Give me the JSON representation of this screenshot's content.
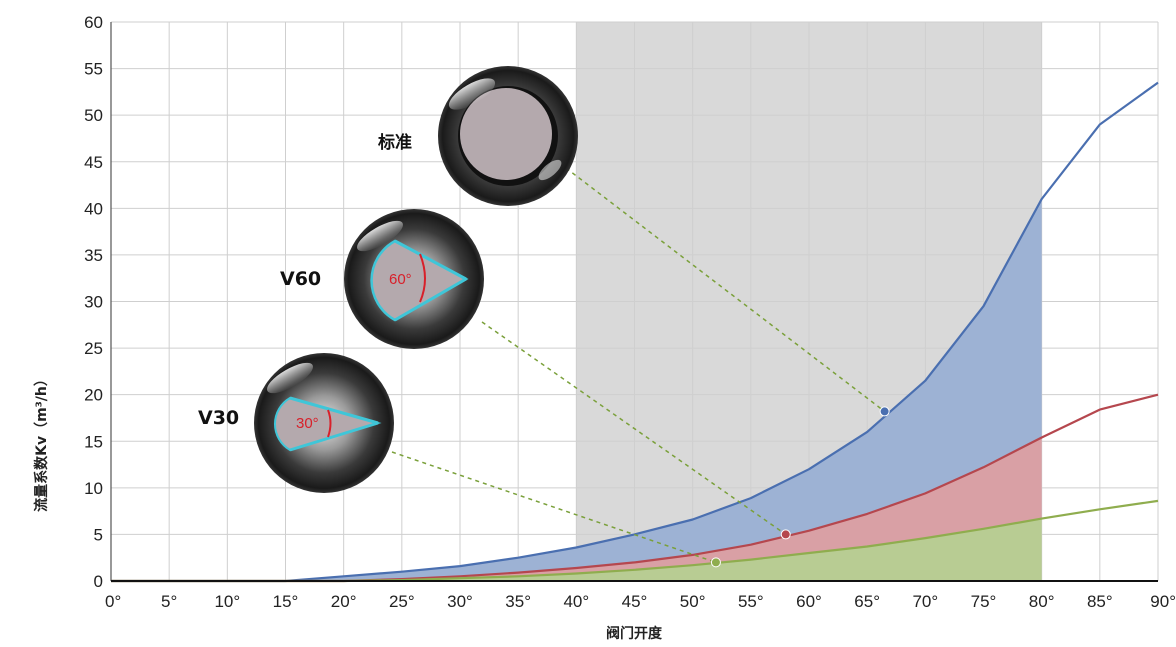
{
  "chart_data": {
    "type": "area",
    "xlabel": "阀门开度",
    "ylabel": "流量系数Kv（m³/h）",
    "x_ticks": [
      "0°",
      "5°",
      "10°",
      "15°",
      "20°",
      "25°",
      "30°",
      "35°",
      "40°",
      "45°",
      "50°",
      "55°",
      "60°",
      "65°",
      "70°",
      "75°",
      "80°",
      "85°",
      "90°"
    ],
    "xlim": [
      0,
      90
    ],
    "ylim": [
      0,
      60
    ],
    "y_ticks": [
      0,
      5,
      10,
      15,
      20,
      25,
      30,
      35,
      40,
      45,
      50,
      55,
      60
    ],
    "grid": true,
    "highlight_range": [
      40,
      80
    ],
    "fill_range": [
      0,
      80
    ],
    "x": [
      0,
      5,
      10,
      15,
      20,
      25,
      30,
      35,
      40,
      45,
      50,
      55,
      60,
      65,
      70,
      75,
      80,
      85,
      90
    ],
    "series": [
      {
        "name": "标准",
        "color": "#4a6fb0",
        "fill": "#9db2d4",
        "values": [
          0,
          0,
          0,
          0,
          0.5,
          1.0,
          1.6,
          2.5,
          3.6,
          5.0,
          6.6,
          8.9,
          12.0,
          16.0,
          21.5,
          29.5,
          41.0,
          49.0,
          53.5
        ]
      },
      {
        "name": "V60",
        "color": "#b5474e",
        "fill": "#d9a0a5",
        "values": [
          0,
          0,
          0,
          0,
          0,
          0.2,
          0.5,
          0.9,
          1.4,
          2.0,
          2.8,
          3.9,
          5.4,
          7.2,
          9.4,
          12.2,
          15.4,
          18.4,
          20.0
        ]
      },
      {
        "name": "V30",
        "color": "#8fad4e",
        "fill": "#b8cc93",
        "values": [
          0,
          0,
          0,
          0,
          0,
          0.1,
          0.3,
          0.5,
          0.8,
          1.2,
          1.7,
          2.3,
          3.0,
          3.7,
          4.6,
          5.6,
          6.7,
          7.7,
          8.6
        ]
      }
    ],
    "markers": [
      {
        "series": "标准",
        "x": 66.5,
        "y": 18.2
      },
      {
        "series": "V60",
        "x": 58.0,
        "y": 5.0
      },
      {
        "series": "V30",
        "x": 52.0,
        "y": 2.0
      }
    ]
  },
  "annotations": [
    {
      "label": "标准",
      "angle": ""
    },
    {
      "label": "V60",
      "angle": "60°"
    },
    {
      "label": "V30",
      "angle": "30°"
    }
  ]
}
